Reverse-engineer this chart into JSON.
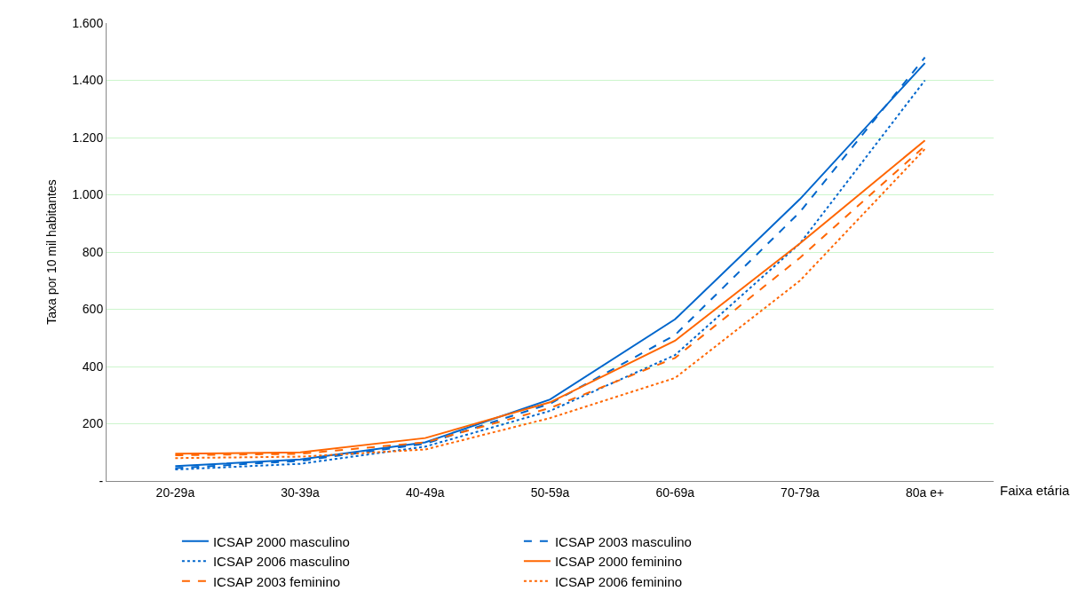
{
  "chart_data": {
    "type": "line",
    "xlabel": "Faixa etária",
    "ylabel": "Taxa por 10 mil habitantes",
    "categories": [
      "20-29a",
      "30-39a",
      "40-49a",
      "50-59a",
      "60-69a",
      "70-79a",
      "80a e+"
    ],
    "ylim": [
      0,
      1600
    ],
    "yticks": [
      {
        "value": 0,
        "label": "-"
      },
      200,
      400,
      600,
      800,
      {
        "value": 1000,
        "label": "1.000"
      },
      {
        "value": 1200,
        "label": "1.200"
      },
      {
        "value": 1400,
        "label": "1.400"
      },
      {
        "value": 1600,
        "label": "1.600"
      }
    ],
    "grid": "y",
    "legend": "bottom",
    "marker": "none",
    "series": [
      {
        "name": "ICSAP 2000 masculino",
        "color": "#0066cc",
        "line_style": "solid",
        "values": [
          52,
          75,
          135,
          285,
          565,
          985,
          1460
        ]
      },
      {
        "name": "ICSAP 2003 masculino",
        "color": "#0066cc",
        "line_style": "dashed",
        "values": [
          45,
          70,
          130,
          270,
          510,
          940,
          1480
        ]
      },
      {
        "name": "ICSAP 2006 masculino",
        "color": "#0066cc",
        "line_style": "dotted",
        "values": [
          40,
          60,
          120,
          245,
          440,
          830,
          1400
        ]
      },
      {
        "name": "ICSAP 2000 feminino",
        "color": "#ff6600",
        "line_style": "solid",
        "values": [
          95,
          100,
          150,
          275,
          490,
          830,
          1190
        ]
      },
      {
        "name": "ICSAP 2003 feminino",
        "color": "#ff6600",
        "line_style": "dashed",
        "values": [
          90,
          95,
          135,
          255,
          430,
          780,
          1170
        ]
      },
      {
        "name": "ICSAP 2006 feminino",
        "color": "#ff6600",
        "line_style": "dotted",
        "values": [
          80,
          85,
          110,
          220,
          360,
          700,
          1160
        ]
      }
    ]
  }
}
